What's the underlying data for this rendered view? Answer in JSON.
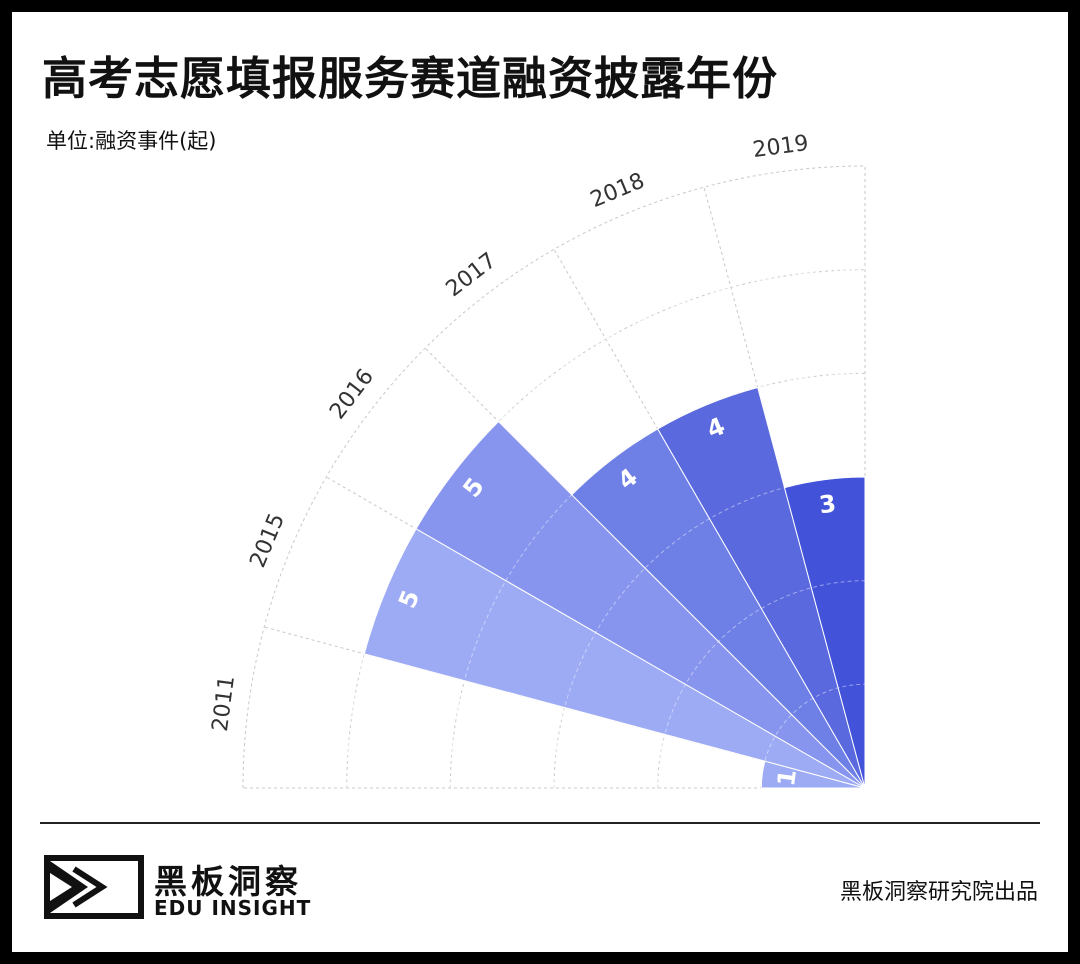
{
  "header": {
    "title": "高考志愿填报服务赛道融资披露年份",
    "unit": "单位:融资事件(起)"
  },
  "chart_data": {
    "type": "bar",
    "title": "高考志愿填报服务赛道融资披露年份",
    "unit_label": "单位:融资事件(起)",
    "categories": [
      "2011",
      "2015",
      "2016",
      "2017",
      "2018",
      "2019"
    ],
    "values": [
      1,
      5,
      5,
      4,
      4,
      3
    ],
    "ylim": [
      0,
      6
    ],
    "grid": true,
    "colors": [
      "#9DABF4",
      "#9DABF4",
      "#8895EE",
      "#6E80E6",
      "#5A69DD",
      "#4253D9"
    ],
    "base_color": "#B6C2F7"
  },
  "footer": {
    "brand_cn": "黑板洞察",
    "brand_en": "EDU INSIGHT",
    "producer": "黑板洞察研究院出品"
  }
}
